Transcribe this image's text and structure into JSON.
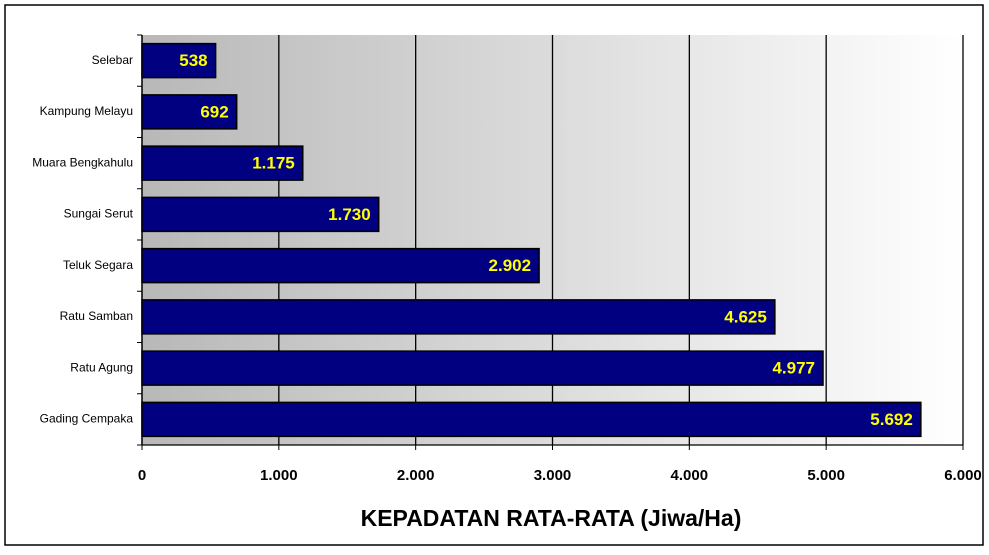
{
  "chart_data": {
    "type": "bar",
    "orientation": "horizontal",
    "x_label": "KEPADATAN RATA-RATA (Jiwa/Ha)",
    "categories": [
      "Selebar",
      "Kampung Melayu",
      "Muara Bengkahulu",
      "Sungai Serut",
      "Teluk Segara",
      "Ratu Samban",
      "Ratu Agung",
      "Gading Cempaka"
    ],
    "values": [
      538,
      692,
      1175,
      1730,
      2902,
      4625,
      4977,
      5692
    ],
    "value_labels": [
      "538",
      "692",
      "1.175",
      "1.730",
      "2.902",
      "4.625",
      "4.977",
      "5.692"
    ],
    "color": "#000080",
    "label_color": "#ffff00",
    "xlim": [
      0,
      6000
    ],
    "xticks": [
      0,
      {
        "value": 1000,
        "label": "1.000"
      },
      {
        "value": 2000,
        "label": "2.000"
      },
      {
        "value": 3000,
        "label": "3.000"
      },
      {
        "value": 4000,
        "label": "4.000"
      },
      {
        "value": 5000,
        "label": "5.000"
      },
      {
        "value": 6000,
        "label": "6.000"
      }
    ],
    "grid": true
  }
}
